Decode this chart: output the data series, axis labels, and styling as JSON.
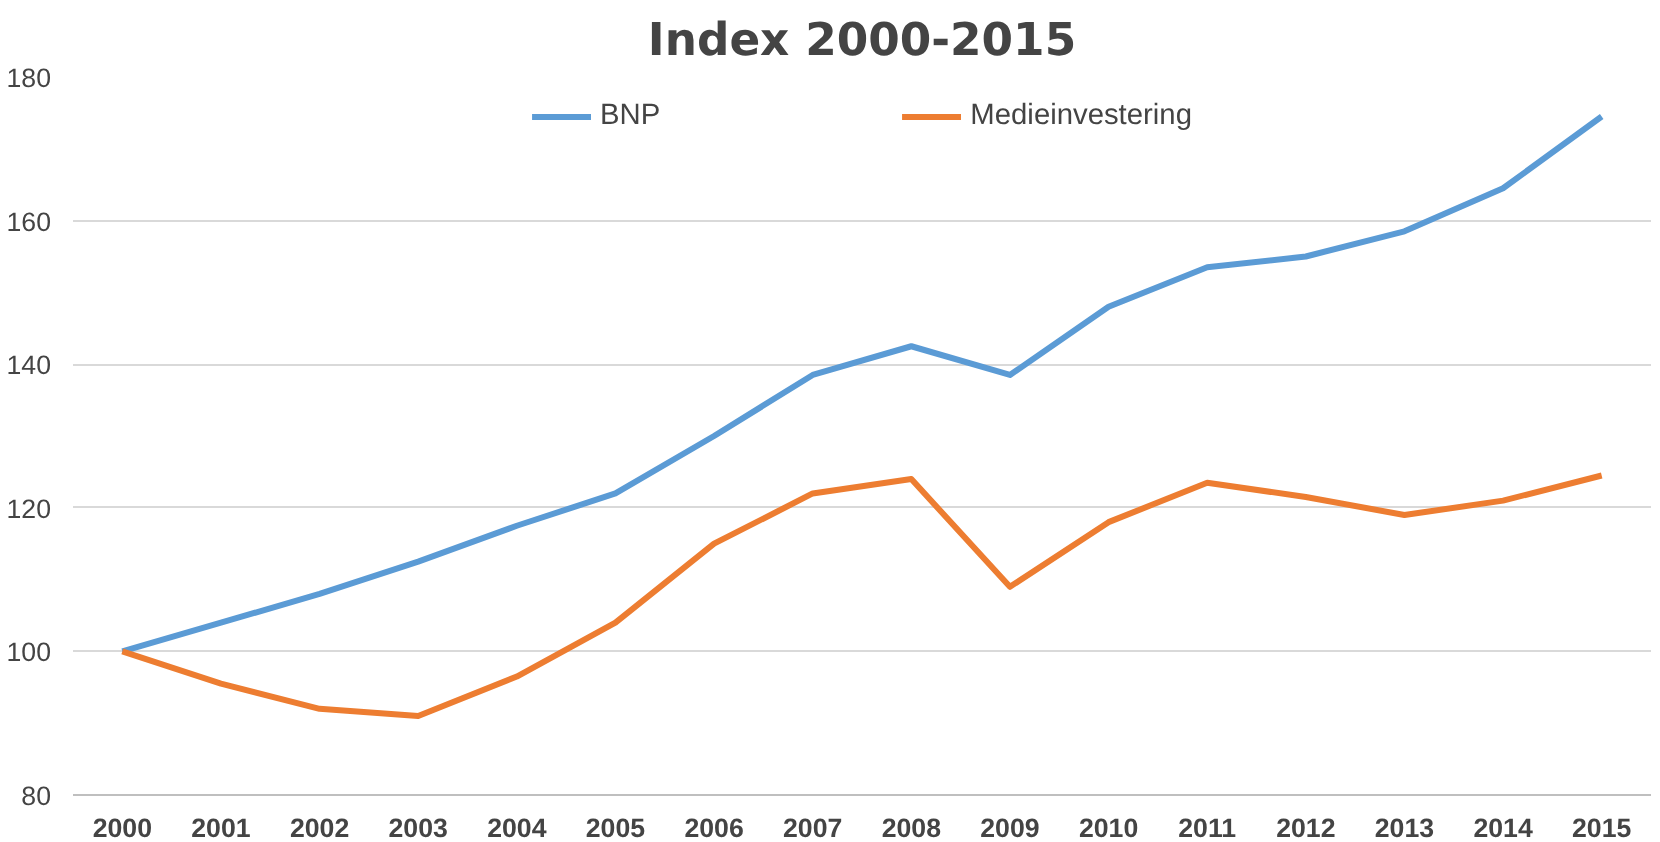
{
  "chart_data": {
    "type": "line",
    "title": "Index 2000-2015",
    "categories": [
      "2000",
      "2001",
      "2002",
      "2003",
      "2004",
      "2005",
      "2006",
      "2007",
      "2008",
      "2009",
      "2010",
      "2011",
      "2012",
      "2013",
      "2014",
      "2015"
    ],
    "series": [
      {
        "name": "BNP",
        "color": "#5b9bd5",
        "values": [
          100,
          104,
          108,
          112.5,
          117.5,
          122,
          130,
          138.5,
          142.5,
          138.5,
          148,
          153.5,
          155,
          158.5,
          164.5,
          174.5
        ]
      },
      {
        "name": "Medieinvestering",
        "color": "#ed7d31",
        "values": [
          100,
          95.5,
          92,
          91,
          96.5,
          104,
          115,
          122,
          124,
          109,
          118,
          123.5,
          121.5,
          119,
          121,
          124.5
        ]
      }
    ],
    "ylim": [
      80,
      180
    ],
    "yticks": [
      80,
      100,
      120,
      140,
      160,
      180
    ],
    "grid": "y",
    "legend": "top",
    "line_style": "solid"
  }
}
